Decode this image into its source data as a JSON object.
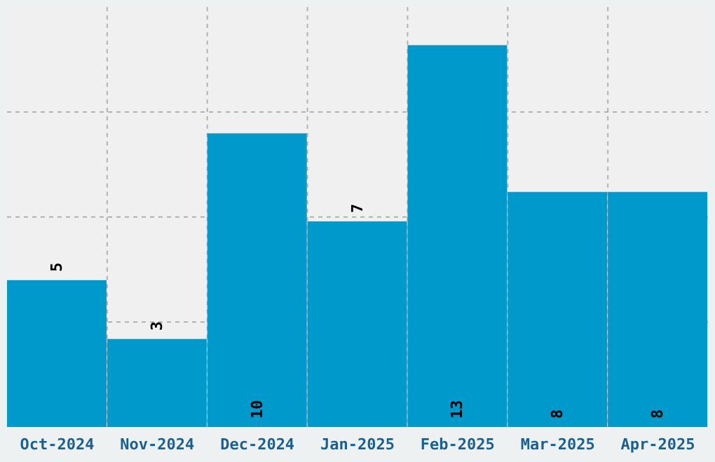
{
  "chart_data": {
    "type": "bar",
    "categories": [
      "Oct-2024",
      "Nov-2024",
      "Dec-2024",
      "Jan-2025",
      "Feb-2025",
      "Mar-2025",
      "Apr-2025"
    ],
    "values": [
      5,
      3,
      10,
      7,
      13,
      8,
      8
    ],
    "color": "#0099cc",
    "data_labels": true,
    "grid": true,
    "tick_labels": "x"
  }
}
